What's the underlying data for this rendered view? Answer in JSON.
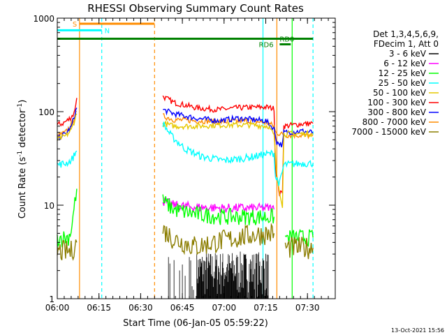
{
  "chart_data": {
    "type": "line",
    "title": "RHESSI Observing Summary Count Rates",
    "xlabel": "Start Time (06-Jan-05 05:59:22)",
    "ylabel_parts": [
      "Count Rate (s",
      "-1",
      " detector",
      "-1",
      ")"
    ],
    "yscale": "log",
    "xlim_minutes": [
      0,
      100
    ],
    "ylim": [
      1,
      1000
    ],
    "x_ticks": [
      {
        "m": 0,
        "label": "06:00"
      },
      {
        "m": 15,
        "label": "06:15"
      },
      {
        "m": 30,
        "label": "06:30"
      },
      {
        "m": 45,
        "label": "06:45"
      },
      {
        "m": 60,
        "label": "07:00"
      },
      {
        "m": 75,
        "label": "07:15"
      },
      {
        "m": 90,
        "label": "07:30"
      }
    ],
    "y_ticks": [
      {
        "v": 1,
        "label": "1"
      },
      {
        "v": 10,
        "label": "10"
      },
      {
        "v": 100,
        "label": "100"
      },
      {
        "v": 1000,
        "label": "1000"
      }
    ],
    "legend": {
      "placement": "right",
      "header": [
        "Det 1,3,4,5,6,9,",
        "FDecim 1, Att 0"
      ],
      "entries": [
        {
          "label": "3 - 6 keV",
          "color": "#000000"
        },
        {
          "label": "6 - 12 keV",
          "color": "#ff00ff"
        },
        {
          "label": "12 - 25 keV",
          "color": "#00ff00"
        },
        {
          "label": "25 - 50 keV",
          "color": "#00ffff"
        },
        {
          "label": "50 - 100 keV",
          "color": "#e6c800"
        },
        {
          "label": "100 - 300 keV",
          "color": "#ff0000"
        },
        {
          "label": "300 - 800 keV",
          "color": "#0000ff"
        },
        {
          "label": "800 - 7000 keV",
          "color": "#ff8c00"
        },
        {
          "label": "7000 - 15000 keV",
          "color": "#8b7d00"
        }
      ]
    },
    "series": [
      {
        "name": "100 - 300 keV",
        "color": "#ff0000",
        "noise": 0.03,
        "segments": [
          [
            [
              0,
              72
            ],
            [
              2,
              75
            ],
            [
              4,
              82
            ],
            [
              6,
              95
            ],
            [
              7,
              140
            ]
          ],
          [
            [
              38,
              145
            ],
            [
              42,
              125
            ],
            [
              50,
              110
            ],
            [
              58,
              105
            ],
            [
              65,
              110
            ],
            [
              75,
              112
            ],
            [
              78,
              108
            ],
            [
              78.5,
              25
            ],
            [
              80,
              13
            ],
            [
              81,
              14
            ],
            [
              81.5,
              70
            ],
            [
              85,
              72
            ],
            [
              88,
              74
            ],
            [
              92,
              75
            ]
          ]
        ]
      },
      {
        "name": "800 - 7000 keV",
        "color": "#ff8c00",
        "noise": 0.03,
        "segments": [
          [
            [
              0,
              55
            ],
            [
              3,
              60
            ],
            [
              5,
              72
            ],
            [
              7,
              100
            ]
          ],
          [
            [
              38,
              90
            ],
            [
              42,
              82
            ],
            [
              50,
              80
            ],
            [
              60,
              78
            ],
            [
              70,
              80
            ],
            [
              76,
              75
            ],
            [
              78,
              70
            ],
            [
              78.5,
              60
            ],
            [
              82,
              56
            ],
            [
              88,
              56
            ],
            [
              92,
              55
            ]
          ]
        ]
      },
      {
        "name": "300 - 800 keV",
        "color": "#0000ff",
        "noise": 0.03,
        "segments": [
          [
            [
              0,
              52
            ],
            [
              3,
              58
            ],
            [
              5,
              68
            ],
            [
              7,
              110
            ]
          ],
          [
            [
              38,
              105
            ],
            [
              42,
              95
            ],
            [
              50,
              85
            ],
            [
              58,
              80
            ],
            [
              65,
              85
            ],
            [
              75,
              80
            ],
            [
              78,
              65
            ],
            [
              79,
              47
            ],
            [
              81,
              44
            ],
            [
              81.5,
              60
            ],
            [
              88,
              62
            ],
            [
              92,
              60
            ]
          ]
        ]
      },
      {
        "name": "50 - 100 keV",
        "color": "#e6c800",
        "noise": 0.03,
        "segments": [
          [
            [
              0,
              50
            ],
            [
              3,
              55
            ],
            [
              5,
              63
            ],
            [
              7,
              95
            ]
          ],
          [
            [
              38,
              75
            ],
            [
              42,
              70
            ],
            [
              50,
              70
            ],
            [
              60,
              72
            ],
            [
              70,
              72
            ],
            [
              76,
              70
            ],
            [
              78,
              55
            ],
            [
              79,
              20
            ],
            [
              81,
              10
            ],
            [
              81.5,
              58
            ],
            [
              88,
              58
            ],
            [
              92,
              58
            ]
          ]
        ]
      },
      {
        "name": "25 - 50 keV",
        "color": "#00ffff",
        "noise": 0.04,
        "segments": [
          [
            [
              0,
              27
            ],
            [
              3,
              28
            ],
            [
              5,
              30
            ],
            [
              7,
              38
            ]
          ],
          [
            [
              38,
              75
            ],
            [
              41,
              55
            ],
            [
              46,
              40
            ],
            [
              52,
              33
            ],
            [
              60,
              30
            ],
            [
              68,
              32
            ],
            [
              75,
              35
            ],
            [
              78,
              36
            ],
            [
              78.5,
              20
            ],
            [
              80,
              17
            ],
            [
              81.5,
              27
            ],
            [
              88,
              28
            ],
            [
              92,
              28
            ]
          ]
        ]
      },
      {
        "name": "6 - 12 keV",
        "color": "#ff00ff",
        "noise": 0.05,
        "segments": [
          [
            [
              38,
              11
            ],
            [
              42,
              10
            ],
            [
              50,
              9.5
            ],
            [
              60,
              9.3
            ],
            [
              70,
              9.3
            ],
            [
              77,
              9.3
            ],
            [
              78,
              9
            ]
          ]
        ]
      },
      {
        "name": "12 - 25 keV",
        "color": "#00ff00",
        "noise": 0.09,
        "segments": [
          [
            [
              0,
              4.5
            ],
            [
              4,
              4.5
            ],
            [
              5,
              5.5
            ],
            [
              6,
              9
            ],
            [
              7,
              15
            ]
          ],
          [
            [
              38,
              11
            ],
            [
              42,
              9
            ],
            [
              50,
              8
            ],
            [
              60,
              7.5
            ],
            [
              70,
              7.5
            ],
            [
              78,
              7.5
            ]
          ],
          [
            [
              82,
              4.5
            ],
            [
              92,
              4.5
            ]
          ]
        ]
      },
      {
        "name": "7000 - 15000 keV",
        "color": "#8b7d00",
        "noise": 0.12,
        "segments": [
          [
            [
              0,
              3.2
            ],
            [
              5,
              3.2
            ],
            [
              7,
              4
            ]
          ],
          [
            [
              38,
              5.5
            ],
            [
              42,
              4.3
            ],
            [
              50,
              3.6
            ],
            [
              60,
              4.2
            ],
            [
              70,
              4.8
            ],
            [
              78,
              5
            ]
          ],
          [
            [
              82,
              3.5
            ],
            [
              92,
              3.5
            ]
          ]
        ]
      }
    ],
    "flags": [
      {
        "label": "S",
        "color": "#ff8c00",
        "y_log": 2.94,
        "x_start": 8,
        "x_end": 35,
        "label_x": 5.5
      },
      {
        "label": "N",
        "color": "#00ffff",
        "y_log": 2.87,
        "x_start": 0,
        "x_end": 16,
        "label_x": 17
      },
      {
        "label": "RD0",
        "color": "#008000",
        "y_log": 2.78,
        "x_start": 0,
        "x_end": 92,
        "label_x": 80
      },
      {
        "label": "RD6",
        "color": "#008000",
        "y_log": 2.72,
        "x_start": 80,
        "x_end": 84,
        "label_x": 72.5
      }
    ],
    "vlines": [
      {
        "m": 8,
        "color": "#ff8c00",
        "dash": false
      },
      {
        "m": 16,
        "color": "#00ffff",
        "dash": true
      },
      {
        "m": 35,
        "color": "#ff8c00",
        "dash": true
      },
      {
        "m": 74,
        "color": "#00ffff",
        "dash": false
      },
      {
        "m": 79,
        "color": "#ff8c00",
        "dash": false
      },
      {
        "m": 84.5,
        "color": "#00ff00",
        "dash": false
      },
      {
        "m": 92,
        "color": "#00ffff",
        "dash": true
      }
    ],
    "stamp": "13-Oct-2021 15:56"
  }
}
